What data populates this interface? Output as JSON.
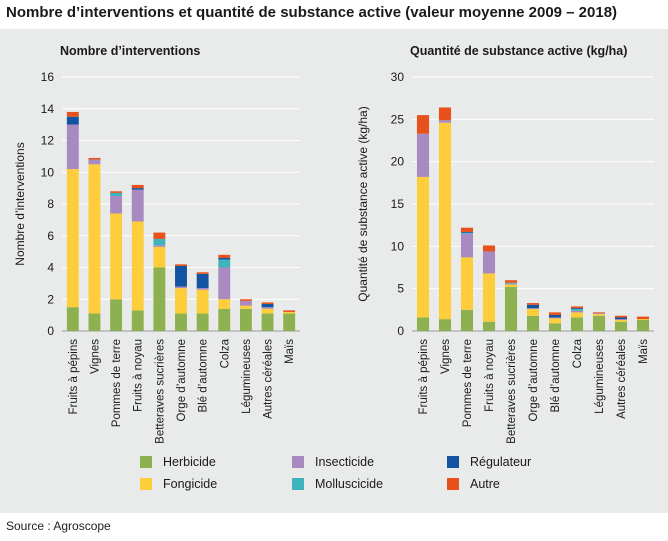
{
  "title": "Nombre d’interventions et quantité de substance active (valeur moyenne 2009 – 2018)",
  "source": "Source : Agroscope",
  "series_colors": {
    "Herbicide": "#8db151",
    "Fongicide": "#fdcd3c",
    "Insecticide": "#a889c0",
    "Molluscicide": "#3fb4bd",
    "Régulateur": "#1254a1",
    "Autre": "#e8511b"
  },
  "legend": [
    {
      "label": "Herbicide",
      "key": "Herbicide"
    },
    {
      "label": "Insecticide",
      "key": "Insecticide"
    },
    {
      "label": "Régulateur",
      "key": "Régulateur"
    },
    {
      "label": "Fongicide",
      "key": "Fongicide"
    },
    {
      "label": "Molluscicide",
      "key": "Molluscicide"
    },
    {
      "label": "Autre",
      "key": "Autre"
    }
  ],
  "chart_data": [
    {
      "type": "bar",
      "stacked": true,
      "title": "Nombre d’interventions",
      "xlabel": "",
      "ylabel": "Nombre d’interventions",
      "ylim": [
        0,
        16
      ],
      "yticks": [
        0,
        2,
        4,
        6,
        8,
        10,
        12,
        14,
        16
      ],
      "grid": true,
      "categories": [
        "Fruits à pépins",
        "Vignes",
        "Pommes de terre",
        "Fruits à noyau",
        "Betteraves sucrières",
        "Orge d’automne",
        "Blé d’automne",
        "Colza",
        "Légumineuses",
        "Autres céréales",
        "Maïs"
      ],
      "series": [
        {
          "name": "Herbicide",
          "values": [
            1.5,
            1.1,
            2.0,
            1.3,
            4.0,
            1.1,
            1.1,
            1.4,
            1.4,
            1.1,
            1.1
          ]
        },
        {
          "name": "Fongicide",
          "values": [
            8.7,
            9.4,
            5.4,
            5.6,
            1.3,
            1.6,
            1.5,
            0.6,
            0.2,
            0.3,
            0.1
          ]
        },
        {
          "name": "Insecticide",
          "values": [
            2.8,
            0.3,
            1.1,
            2.0,
            0.1,
            0.1,
            0.1,
            2.0,
            0.3,
            0.1,
            0.0
          ]
        },
        {
          "name": "Molluscicide",
          "values": [
            0.0,
            0.0,
            0.2,
            0.0,
            0.4,
            0.0,
            0.0,
            0.5,
            0.0,
            0.0,
            0.0
          ]
        },
        {
          "name": "Régulateur",
          "values": [
            0.5,
            0.0,
            0.0,
            0.1,
            0.0,
            1.3,
            0.9,
            0.1,
            0.0,
            0.2,
            0.0
          ]
        },
        {
          "name": "Autre",
          "values": [
            0.3,
            0.1,
            0.1,
            0.2,
            0.4,
            0.1,
            0.1,
            0.2,
            0.1,
            0.1,
            0.1
          ]
        }
      ]
    },
    {
      "type": "bar",
      "stacked": true,
      "title": "Quantité de substance active (kg/ha)",
      "xlabel": "",
      "ylabel": "Quantité de substance active (kg/ha)",
      "ylim": [
        0,
        30
      ],
      "yticks": [
        0,
        5,
        10,
        15,
        20,
        25,
        30
      ],
      "grid": true,
      "categories": [
        "Fruits à pépins",
        "Vignes",
        "Pommes de terre",
        "Fruits à noyau",
        "Betteraves sucrières",
        "Orge d’automne",
        "Blé d’automne",
        "Colza",
        "Légumineuses",
        "Autres céréales",
        "Maïs"
      ],
      "series": [
        {
          "name": "Herbicide",
          "values": [
            1.6,
            1.4,
            2.5,
            1.1,
            5.2,
            1.8,
            0.9,
            1.6,
            1.8,
            1.1,
            1.3
          ]
        },
        {
          "name": "Fongicide",
          "values": [
            16.6,
            23.2,
            6.2,
            5.7,
            0.3,
            0.8,
            0.6,
            0.6,
            0.2,
            0.2,
            0.1
          ]
        },
        {
          "name": "Insecticide",
          "values": [
            5.1,
            0.3,
            2.8,
            2.6,
            0.1,
            0.1,
            0.1,
            0.2,
            0.1,
            0.1,
            0.0
          ]
        },
        {
          "name": "Molluscicide",
          "values": [
            0.0,
            0.0,
            0.1,
            0.0,
            0.1,
            0.0,
            0.0,
            0.2,
            0.0,
            0.0,
            0.0
          ]
        },
        {
          "name": "Régulateur",
          "values": [
            0.0,
            0.0,
            0.1,
            0.0,
            0.0,
            0.4,
            0.3,
            0.1,
            0.0,
            0.2,
            0.0
          ]
        },
        {
          "name": "Autre",
          "values": [
            2.2,
            1.5,
            0.5,
            0.7,
            0.3,
            0.2,
            0.3,
            0.2,
            0.1,
            0.2,
            0.3
          ]
        }
      ]
    }
  ]
}
